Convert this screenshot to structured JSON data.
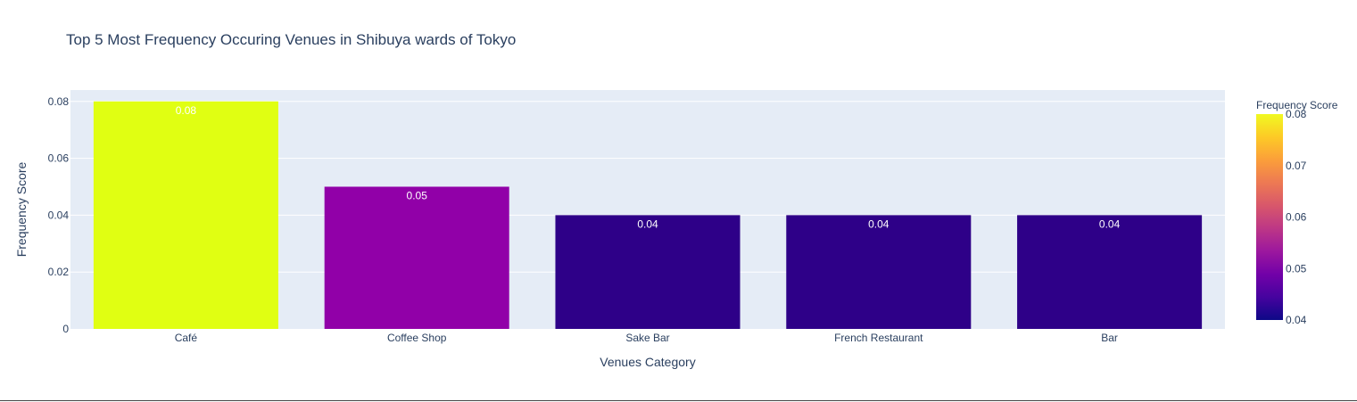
{
  "chart_data": {
    "type": "bar",
    "title": "Top 5 Most Frequency Occuring Venues in Shibuya wards of Tokyo",
    "xlabel": "Venues Category",
    "ylabel": "Frequency Score",
    "categories": [
      "Café",
      "Coffee Shop",
      "Sake Bar",
      "French Restaurant",
      "Bar"
    ],
    "values": [
      0.08,
      0.05,
      0.04,
      0.04,
      0.04
    ],
    "data_labels": [
      "0.08",
      "0.05",
      "0.04",
      "0.04",
      "0.04"
    ],
    "ylim": [
      0,
      0.084
    ],
    "yticks": [
      0,
      0.02,
      0.04,
      0.06,
      0.08
    ],
    "ytick_labels": [
      "0",
      "0.02",
      "0.04",
      "0.06",
      "0.08"
    ],
    "grid": true,
    "colorbar": {
      "title": "Frequency Score",
      "range": [
        0.04,
        0.08
      ],
      "ticks": [
        0.04,
        0.05,
        0.06,
        0.07,
        0.08
      ],
      "tick_labels": [
        "0.04",
        "0.05",
        "0.06",
        "0.07",
        "0.08"
      ],
      "colorscale": [
        "#0d0887",
        "#46039f",
        "#7201a8",
        "#9c179e",
        "#bd3786",
        "#d8576b",
        "#ed7953",
        "#fb9f3a",
        "#fdca26",
        "#f0f921"
      ]
    },
    "bar_colors": [
      "#e0ff12",
      "#9100a8",
      "#2e0088",
      "#2e0088",
      "#2e0088"
    ],
    "plot_background": "#e5ecf6"
  }
}
